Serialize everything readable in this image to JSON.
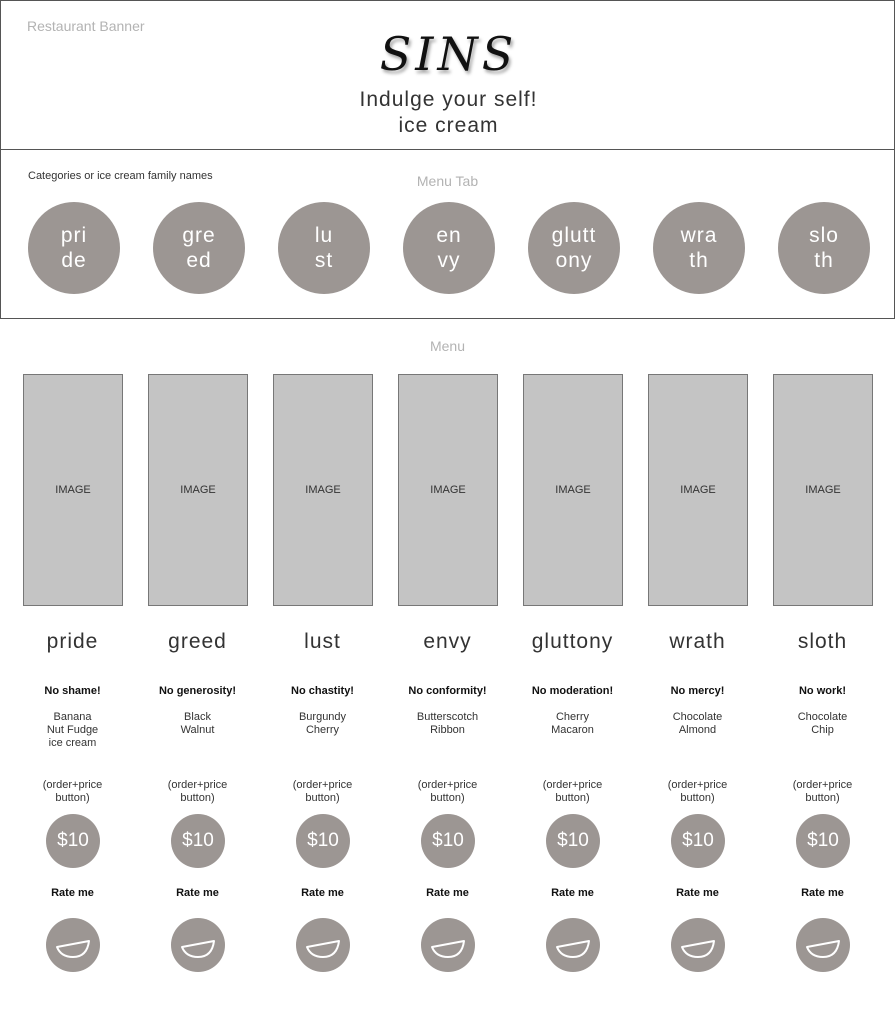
{
  "banner": {
    "label": "Restaurant Banner",
    "logo": "SINS",
    "tagline_line1": "Indulge your self!",
    "tagline_line2": "ice cream"
  },
  "categories": {
    "label": "Categories or ice cream family names",
    "tab_label": "Menu Tab",
    "items": [
      {
        "line1": "pri",
        "line2": "de"
      },
      {
        "line1": "gre",
        "line2": "ed"
      },
      {
        "line1": "lu",
        "line2": "st"
      },
      {
        "line1": "en",
        "line2": "vy"
      },
      {
        "line1": "glutt",
        "line2": "ony"
      },
      {
        "line1": "wra",
        "line2": "th"
      },
      {
        "line1": "slo",
        "line2": "th"
      }
    ]
  },
  "menu": {
    "label": "Menu",
    "items": [
      {
        "image": "IMAGE",
        "name": "pride",
        "slogan": "No shame!",
        "flavor": [
          "Banana",
          "Nut Fudge",
          "ice cream"
        ],
        "order": [
          "(order+price",
          "button)"
        ],
        "price": "$10",
        "rate": "Rate me"
      },
      {
        "image": "IMAGE",
        "name": "greed",
        "slogan": "No generosity!",
        "flavor": [
          "Black",
          "Walnut"
        ],
        "order": [
          "(order+price",
          "button)"
        ],
        "price": "$10",
        "rate": "Rate me"
      },
      {
        "image": "IMAGE",
        "name": "lust",
        "slogan": "No chastity!",
        "flavor": [
          "Burgundy",
          "Cherry"
        ],
        "order": [
          "(order+price",
          "button)"
        ],
        "price": "$10",
        "rate": "Rate me"
      },
      {
        "image": "IMAGE",
        "name": "envy",
        "slogan": "No conformity!",
        "flavor": [
          "Butterscotch",
          "Ribbon"
        ],
        "order": [
          "(order+price",
          "button)"
        ],
        "price": "$10",
        "rate": "Rate me"
      },
      {
        "image": "IMAGE",
        "name": "gluttony",
        "slogan": "No moderation!",
        "flavor": [
          "Cherry",
          "Macaron"
        ],
        "order": [
          "(order+price",
          "button)"
        ],
        "price": "$10",
        "rate": "Rate me"
      },
      {
        "image": "IMAGE",
        "name": "wrath",
        "slogan": "No mercy!",
        "flavor": [
          "Chocolate",
          "Almond"
        ],
        "order": [
          "(order+price",
          "button)"
        ],
        "price": "$10",
        "rate": "Rate me"
      },
      {
        "image": "IMAGE",
        "name": "sloth",
        "slogan": "No work!",
        "flavor": [
          "Chocolate",
          "Chip"
        ],
        "order": [
          "(order+price",
          "button)"
        ],
        "price": "$10",
        "rate": "Rate me"
      }
    ]
  },
  "colors": {
    "circle_fill": "#9c9693",
    "image_placeholder": "#c4c4c4",
    "muted_label": "#b3b3b3"
  },
  "icons": {
    "rate": "half-smile-bowl-icon"
  }
}
